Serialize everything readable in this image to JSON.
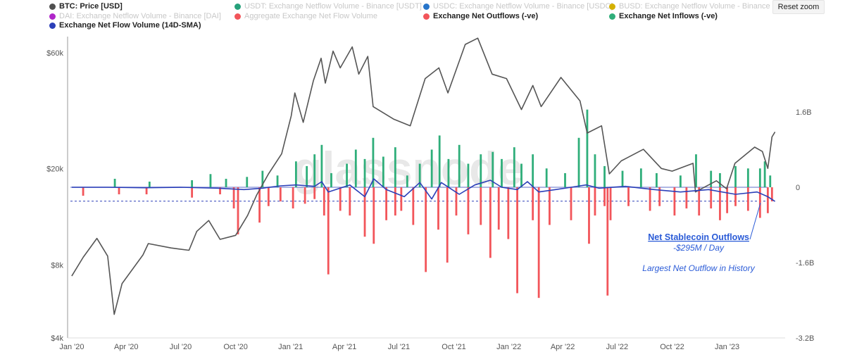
{
  "reset_zoom_label": "Reset zoom",
  "watermark": "glassnode",
  "colors": {
    "price": "#555555",
    "inflow": "#2fae7a",
    "outflow": "#f2555a",
    "sma": "#2b3fb8",
    "annotation": "#2a5bd7"
  },
  "legend": [
    {
      "label": "BTC: Price [USD]",
      "color": "#505050",
      "state": "active"
    },
    {
      "label": "USDT: Exchange Netflow Volume - Binance [USDT]",
      "color": "#26a17b",
      "state": "hidden"
    },
    {
      "label": "USDC: Exchange Netflow Volume - Binance [USDC]",
      "color": "#2775ca",
      "state": "hidden"
    },
    {
      "label": "BUSD: Exchange Netflow Volume - Binance [BUSD]",
      "color": "#d4b000",
      "state": "hidden"
    },
    {
      "label": "DAI: Exchange Netflow Volume - Binance [DAI]",
      "color": "#b026c9",
      "state": "hidden"
    },
    {
      "label": "Aggregate Exchange Net Flow Volume",
      "color": "#f2555a",
      "state": "hidden"
    },
    {
      "label": "Exchange Net Outflows (-ve)",
      "color": "#f2555a",
      "state": "active"
    },
    {
      "label": "Exchange Net Inflows (-ve)",
      "color": "#2fae7a",
      "state": "active"
    },
    {
      "label": "Exchange Net Flow Volume (14D-SMA)",
      "color": "#2b3fb8",
      "state": "active"
    }
  ],
  "annotations": {
    "title": "Net Stablecoin Outflows",
    "value": "-$295M / Day",
    "note": "Largest Net Outflow in History"
  },
  "chart_data": {
    "type": "line",
    "x_axis_labels": [
      "Jan '20",
      "Apr '20",
      "Jul '20",
      "Oct '20",
      "Jan '21",
      "Apr '21",
      "Jul '21",
      "Oct '21",
      "Jan '22",
      "Apr '22",
      "Jul '22",
      "Oct '22",
      "Jan '23"
    ],
    "left_axis": {
      "scale": "log",
      "ticks": [
        "$4k",
        "$8k",
        "$20k",
        "$60k"
      ],
      "tick_values": [
        4000,
        8000,
        20000,
        60000
      ],
      "range": [
        4000,
        70000
      ]
    },
    "right_axis": {
      "scale": "linear",
      "ticks": [
        "-3.2B",
        "-1.6B",
        "0",
        "1.6B"
      ],
      "tick_values": [
        -3.2,
        -1.6,
        0,
        1.6
      ],
      "unit": "B USD",
      "range": [
        -3.2,
        3.2
      ]
    },
    "series": [
      {
        "name": "BTC: Price [USD]",
        "axis": "left",
        "points": [
          [
            "2020-01-01",
            7200
          ],
          [
            "2020-01-20",
            8600
          ],
          [
            "2020-02-12",
            10300
          ],
          [
            "2020-03-01",
            8700
          ],
          [
            "2020-03-12",
            5000
          ],
          [
            "2020-03-25",
            6700
          ],
          [
            "2020-04-29",
            8800
          ],
          [
            "2020-05-08",
            9800
          ],
          [
            "2020-06-15",
            9400
          ],
          [
            "2020-07-15",
            9200
          ],
          [
            "2020-07-28",
            11000
          ],
          [
            "2020-08-17",
            12200
          ],
          [
            "2020-09-05",
            10200
          ],
          [
            "2020-10-01",
            10600
          ],
          [
            "2020-10-21",
            12800
          ],
          [
            "2020-11-05",
            15500
          ],
          [
            "2020-11-25",
            19000
          ],
          [
            "2020-12-17",
            23000
          ],
          [
            "2021-01-02",
            33000
          ],
          [
            "2021-01-08",
            41000
          ],
          [
            "2021-01-22",
            31000
          ],
          [
            "2021-02-08",
            46000
          ],
          [
            "2021-02-21",
            57000
          ],
          [
            "2021-02-28",
            45000
          ],
          [
            "2021-03-13",
            61000
          ],
          [
            "2021-03-25",
            52000
          ],
          [
            "2021-04-14",
            63500
          ],
          [
            "2021-04-25",
            49000
          ],
          [
            "2021-05-10",
            58000
          ],
          [
            "2021-05-19",
            36000
          ],
          [
            "2021-06-22",
            32000
          ],
          [
            "2021-07-20",
            30000
          ],
          [
            "2021-08-14",
            47000
          ],
          [
            "2021-09-06",
            52000
          ],
          [
            "2021-09-21",
            41000
          ],
          [
            "2021-10-20",
            65000
          ],
          [
            "2021-11-10",
            69000
          ],
          [
            "2021-12-04",
            49000
          ],
          [
            "2021-12-28",
            47000
          ],
          [
            "2022-01-22",
            35000
          ],
          [
            "2022-02-10",
            44000
          ],
          [
            "2022-02-24",
            36000
          ],
          [
            "2022-03-29",
            47500
          ],
          [
            "2022-04-30",
            38000
          ],
          [
            "2022-05-12",
            28000
          ],
          [
            "2022-06-05",
            30000
          ],
          [
            "2022-06-18",
            19000
          ],
          [
            "2022-07-08",
            21500
          ],
          [
            "2022-08-14",
            24000
          ],
          [
            "2022-09-13",
            20000
          ],
          [
            "2022-10-01",
            19500
          ],
          [
            "2022-11-05",
            21000
          ],
          [
            "2022-11-09",
            16000
          ],
          [
            "2022-12-14",
            17800
          ],
          [
            "2022-12-31",
            16500
          ],
          [
            "2023-01-14",
            21000
          ],
          [
            "2023-02-16",
            24500
          ],
          [
            "2023-03-01",
            23500
          ],
          [
            "2023-03-10",
            20000
          ],
          [
            "2023-03-17",
            27000
          ],
          [
            "2023-03-22",
            28300
          ]
        ]
      },
      {
        "name": "Exchange Net Inflows (-ve)",
        "axis": "right",
        "type": "bar",
        "points": [
          [
            "2020-03-13",
            0.18
          ],
          [
            "2020-05-10",
            0.12
          ],
          [
            "2020-07-20",
            0.15
          ],
          [
            "2020-08-20",
            0.28
          ],
          [
            "2020-09-15",
            0.18
          ],
          [
            "2020-10-20",
            0.22
          ],
          [
            "2020-11-15",
            0.35
          ],
          [
            "2020-12-10",
            0.25
          ],
          [
            "2021-01-10",
            0.55
          ],
          [
            "2021-01-28",
            0.45
          ],
          [
            "2021-02-10",
            0.7
          ],
          [
            "2021-02-22",
            0.9
          ],
          [
            "2021-03-10",
            0.3
          ],
          [
            "2021-04-05",
            0.5
          ],
          [
            "2021-04-20",
            0.8
          ],
          [
            "2021-05-05",
            0.6
          ],
          [
            "2021-05-19",
            1.05
          ],
          [
            "2021-06-05",
            0.65
          ],
          [
            "2021-06-25",
            0.85
          ],
          [
            "2021-07-15",
            0.25
          ],
          [
            "2021-08-05",
            0.5
          ],
          [
            "2021-08-25",
            0.8
          ],
          [
            "2021-09-07",
            1.1
          ],
          [
            "2021-09-22",
            0.6
          ],
          [
            "2021-10-10",
            0.9
          ],
          [
            "2021-10-25",
            0.5
          ],
          [
            "2021-11-15",
            0.7
          ],
          [
            "2021-12-05",
            0.75
          ],
          [
            "2021-12-20",
            0.6
          ],
          [
            "2022-01-10",
            0.85
          ],
          [
            "2022-01-22",
            0.5
          ],
          [
            "2022-02-10",
            0.7
          ],
          [
            "2022-03-05",
            0.4
          ],
          [
            "2022-04-05",
            0.3
          ],
          [
            "2022-04-28",
            1.05
          ],
          [
            "2022-05-12",
            1.65
          ],
          [
            "2022-05-25",
            0.7
          ],
          [
            "2022-06-10",
            0.45
          ],
          [
            "2022-07-10",
            0.35
          ],
          [
            "2022-08-10",
            0.4
          ],
          [
            "2022-09-05",
            0.3
          ],
          [
            "2022-10-15",
            0.25
          ],
          [
            "2022-11-10",
            0.7
          ],
          [
            "2022-12-05",
            0.35
          ],
          [
            "2022-12-20",
            0.3
          ],
          [
            "2023-01-15",
            0.45
          ],
          [
            "2023-02-05",
            0.4
          ],
          [
            "2023-02-25",
            0.4
          ],
          [
            "2023-03-05",
            0.55
          ],
          [
            "2023-03-14",
            0.25
          ]
        ]
      },
      {
        "name": "Exchange Net Outflows (-ve)",
        "axis": "right",
        "type": "bar",
        "points": [
          [
            "2020-01-20",
            -0.18
          ],
          [
            "2020-03-20",
            -0.15
          ],
          [
            "2020-05-05",
            -0.15
          ],
          [
            "2020-07-20",
            -0.22
          ],
          [
            "2020-09-05",
            -0.15
          ],
          [
            "2020-09-28",
            -0.45
          ],
          [
            "2020-10-05",
            -1.0
          ],
          [
            "2020-11-10",
            -0.75
          ],
          [
            "2020-11-25",
            -0.4
          ],
          [
            "2020-12-15",
            -0.3
          ],
          [
            "2021-01-05",
            -0.45
          ],
          [
            "2021-01-25",
            -0.35
          ],
          [
            "2021-02-10",
            -0.25
          ],
          [
            "2021-02-26",
            -0.6
          ],
          [
            "2021-03-05",
            -1.85
          ],
          [
            "2021-03-25",
            -0.5
          ],
          [
            "2021-04-10",
            -0.6
          ],
          [
            "2021-05-05",
            -1.05
          ],
          [
            "2021-05-20",
            -1.2
          ],
          [
            "2021-06-10",
            -0.7
          ],
          [
            "2021-06-25",
            -0.6
          ],
          [
            "2021-07-05",
            -0.5
          ],
          [
            "2021-07-25",
            -0.8
          ],
          [
            "2021-08-15",
            -1.8
          ],
          [
            "2021-09-05",
            -0.9
          ],
          [
            "2021-09-20",
            -1.6
          ],
          [
            "2021-10-05",
            -0.6
          ],
          [
            "2021-10-25",
            -1.0
          ],
          [
            "2021-11-15",
            -0.8
          ],
          [
            "2021-12-01",
            -1.5
          ],
          [
            "2021-12-15",
            -0.9
          ],
          [
            "2021-12-31",
            -1.1
          ],
          [
            "2022-01-15",
            -2.25
          ],
          [
            "2022-02-10",
            -0.7
          ],
          [
            "2022-02-20",
            -2.35
          ],
          [
            "2022-03-10",
            -0.8
          ],
          [
            "2022-04-15",
            -0.7
          ],
          [
            "2022-05-15",
            -1.2
          ],
          [
            "2022-05-25",
            -0.6
          ],
          [
            "2022-06-10",
            -0.4
          ],
          [
            "2022-06-15",
            -2.3
          ],
          [
            "2022-06-20",
            -0.7
          ],
          [
            "2022-07-20",
            -0.4
          ],
          [
            "2022-08-25",
            -0.5
          ],
          [
            "2022-09-10",
            -0.4
          ],
          [
            "2022-10-05",
            -0.6
          ],
          [
            "2022-10-25",
            -0.45
          ],
          [
            "2022-11-15",
            -0.6
          ],
          [
            "2022-12-05",
            -0.45
          ],
          [
            "2022-12-20",
            -0.7
          ],
          [
            "2023-01-01",
            -0.55
          ],
          [
            "2023-01-15",
            -0.4
          ],
          [
            "2023-02-05",
            -0.5
          ],
          [
            "2023-02-25",
            -0.65
          ],
          [
            "2023-03-10",
            -0.55
          ],
          [
            "2023-03-17",
            -0.3
          ]
        ]
      },
      {
        "name": "Exchange Net Flow Volume (14D-SMA)",
        "axis": "right",
        "points": [
          [
            "2020-01-01",
            0.0
          ],
          [
            "2020-03-01",
            0.0
          ],
          [
            "2020-05-01",
            -0.01
          ],
          [
            "2020-07-01",
            0.0
          ],
          [
            "2020-09-01",
            -0.02
          ],
          [
            "2020-10-15",
            -0.05
          ],
          [
            "2020-11-15",
            -0.02
          ],
          [
            "2020-12-15",
            0.03
          ],
          [
            "2021-01-10",
            0.05
          ],
          [
            "2021-02-10",
            0.02
          ],
          [
            "2021-02-22",
            0.12
          ],
          [
            "2021-03-05",
            -0.1
          ],
          [
            "2021-04-10",
            0.05
          ],
          [
            "2021-05-05",
            -0.2
          ],
          [
            "2021-05-20",
            0.18
          ],
          [
            "2021-06-10",
            -0.05
          ],
          [
            "2021-07-10",
            -0.2
          ],
          [
            "2021-08-05",
            0.1
          ],
          [
            "2021-08-25",
            -0.25
          ],
          [
            "2021-09-10",
            0.1
          ],
          [
            "2021-10-10",
            -0.15
          ],
          [
            "2021-11-05",
            0.05
          ],
          [
            "2021-12-01",
            0.15
          ],
          [
            "2021-12-20",
            0.0
          ],
          [
            "2022-01-15",
            -0.05
          ],
          [
            "2022-02-01",
            0.12
          ],
          [
            "2022-02-20",
            -0.1
          ],
          [
            "2022-03-20",
            -0.05
          ],
          [
            "2022-04-15",
            0.0
          ],
          [
            "2022-05-10",
            0.05
          ],
          [
            "2022-06-01",
            -0.02
          ],
          [
            "2022-07-15",
            0.02
          ],
          [
            "2022-09-01",
            -0.05
          ],
          [
            "2022-10-15",
            -0.1
          ],
          [
            "2022-12-01",
            -0.05
          ],
          [
            "2023-01-15",
            -0.15
          ],
          [
            "2023-02-20",
            -0.1
          ],
          [
            "2023-03-10",
            -0.2
          ],
          [
            "2023-03-22",
            -0.3
          ]
        ]
      }
    ],
    "reference_line": {
      "value": -0.295,
      "unit": "B USD",
      "axis": "right",
      "style": "dashed"
    },
    "grid": false,
    "legend_position": "top"
  }
}
